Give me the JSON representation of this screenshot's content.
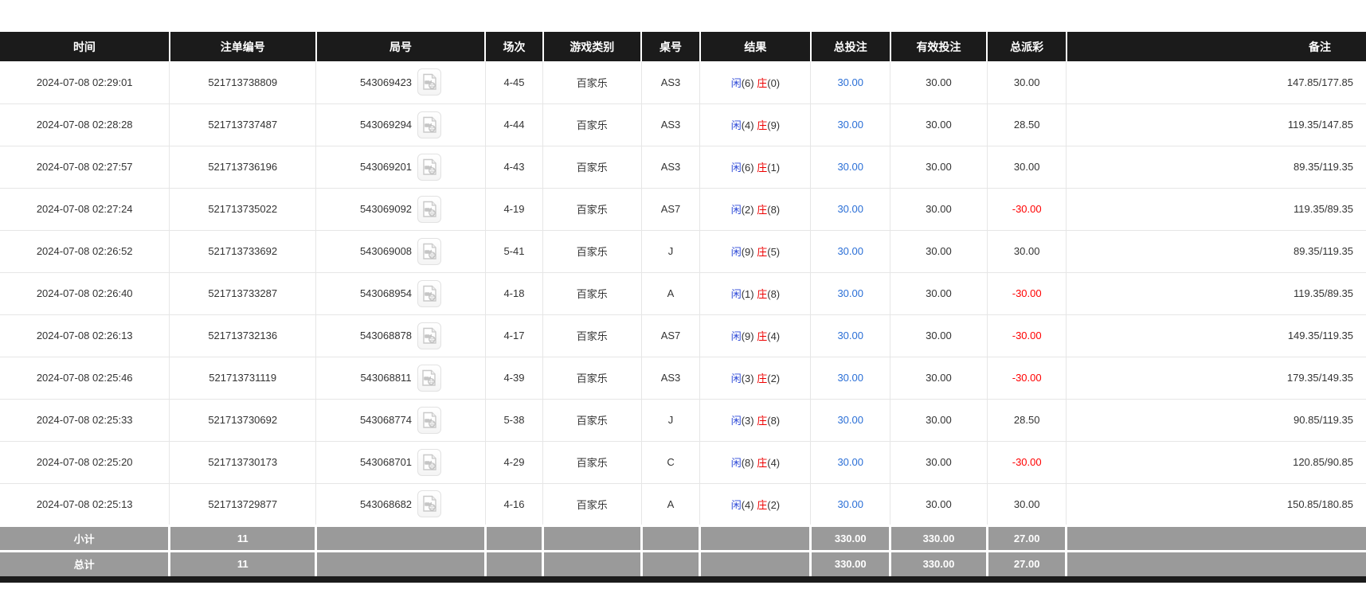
{
  "colors": {
    "header_bg": "#1b1b1b",
    "footer_bg": "#9a9a9a",
    "row_border": "#e6e6e6",
    "text": "#333333",
    "amount_blue": "#2b6fd6",
    "player_blue": "#2f4bd8",
    "banker_red": "#ee0000",
    "negative_red": "#ff0000"
  },
  "icons": {
    "round_video": "video-file-icon"
  },
  "table": {
    "columns": [
      {
        "key": "time",
        "label": "时间"
      },
      {
        "key": "bet_id",
        "label": "注单编号"
      },
      {
        "key": "round_id",
        "label": "局号"
      },
      {
        "key": "session",
        "label": "场次"
      },
      {
        "key": "game_type",
        "label": "游戏类别"
      },
      {
        "key": "table_no",
        "label": "桌号"
      },
      {
        "key": "result",
        "label": "结果"
      },
      {
        "key": "total_bet",
        "label": "总投注"
      },
      {
        "key": "valid_bet",
        "label": "有效投注"
      },
      {
        "key": "payout",
        "label": "总派彩"
      },
      {
        "key": "remark",
        "label": "备注"
      }
    ],
    "rows": [
      {
        "time": "2024-07-08 02:29:01",
        "bet_id": "521713738809",
        "round_id": "543069423",
        "session": "4-45",
        "game_type": "百家乐",
        "table_no": "AS3",
        "result_player": "闲",
        "result_player_score": "(6)",
        "result_banker": "庄",
        "result_banker_score": "(0)",
        "total_bet": "30.00",
        "valid_bet": "30.00",
        "payout": "30.00",
        "remark": "147.85/177.85"
      },
      {
        "time": "2024-07-08 02:28:28",
        "bet_id": "521713737487",
        "round_id": "543069294",
        "session": "4-44",
        "game_type": "百家乐",
        "table_no": "AS3",
        "result_player": "闲",
        "result_player_score": "(4)",
        "result_banker": "庄",
        "result_banker_score": "(9)",
        "total_bet": "30.00",
        "valid_bet": "30.00",
        "payout": "28.50",
        "remark": "119.35/147.85"
      },
      {
        "time": "2024-07-08 02:27:57",
        "bet_id": "521713736196",
        "round_id": "543069201",
        "session": "4-43",
        "game_type": "百家乐",
        "table_no": "AS3",
        "result_player": "闲",
        "result_player_score": "(6)",
        "result_banker": "庄",
        "result_banker_score": "(1)",
        "total_bet": "30.00",
        "valid_bet": "30.00",
        "payout": "30.00",
        "remark": "89.35/119.35"
      },
      {
        "time": "2024-07-08 02:27:24",
        "bet_id": "521713735022",
        "round_id": "543069092",
        "session": "4-19",
        "game_type": "百家乐",
        "table_no": "AS7",
        "result_player": "闲",
        "result_player_score": "(2)",
        "result_banker": "庄",
        "result_banker_score": "(8)",
        "total_bet": "30.00",
        "valid_bet": "30.00",
        "payout": "-30.00",
        "remark": "119.35/89.35"
      },
      {
        "time": "2024-07-08 02:26:52",
        "bet_id": "521713733692",
        "round_id": "543069008",
        "session": "5-41",
        "game_type": "百家乐",
        "table_no": "J",
        "result_player": "闲",
        "result_player_score": "(9)",
        "result_banker": "庄",
        "result_banker_score": "(5)",
        "total_bet": "30.00",
        "valid_bet": "30.00",
        "payout": "30.00",
        "remark": "89.35/119.35"
      },
      {
        "time": "2024-07-08 02:26:40",
        "bet_id": "521713733287",
        "round_id": "543068954",
        "session": "4-18",
        "game_type": "百家乐",
        "table_no": "A",
        "result_player": "闲",
        "result_player_score": "(1)",
        "result_banker": "庄",
        "result_banker_score": "(8)",
        "total_bet": "30.00",
        "valid_bet": "30.00",
        "payout": "-30.00",
        "remark": "119.35/89.35"
      },
      {
        "time": "2024-07-08 02:26:13",
        "bet_id": "521713732136",
        "round_id": "543068878",
        "session": "4-17",
        "game_type": "百家乐",
        "table_no": "AS7",
        "result_player": "闲",
        "result_player_score": "(9)",
        "result_banker": "庄",
        "result_banker_score": "(4)",
        "total_bet": "30.00",
        "valid_bet": "30.00",
        "payout": "-30.00",
        "remark": "149.35/119.35"
      },
      {
        "time": "2024-07-08 02:25:46",
        "bet_id": "521713731119",
        "round_id": "543068811",
        "session": "4-39",
        "game_type": "百家乐",
        "table_no": "AS3",
        "result_player": "闲",
        "result_player_score": "(3)",
        "result_banker": "庄",
        "result_banker_score": "(2)",
        "total_bet": "30.00",
        "valid_bet": "30.00",
        "payout": "-30.00",
        "remark": "179.35/149.35"
      },
      {
        "time": "2024-07-08 02:25:33",
        "bet_id": "521713730692",
        "round_id": "543068774",
        "session": "5-38",
        "game_type": "百家乐",
        "table_no": "J",
        "result_player": "闲",
        "result_player_score": "(3)",
        "result_banker": "庄",
        "result_banker_score": "(8)",
        "total_bet": "30.00",
        "valid_bet": "30.00",
        "payout": "28.50",
        "remark": "90.85/119.35"
      },
      {
        "time": "2024-07-08 02:25:20",
        "bet_id": "521713730173",
        "round_id": "543068701",
        "session": "4-29",
        "game_type": "百家乐",
        "table_no": "C",
        "result_player": "闲",
        "result_player_score": "(8)",
        "result_banker": "庄",
        "result_banker_score": "(4)",
        "total_bet": "30.00",
        "valid_bet": "30.00",
        "payout": "-30.00",
        "remark": "120.85/90.85"
      },
      {
        "time": "2024-07-08 02:25:13",
        "bet_id": "521713729877",
        "round_id": "543068682",
        "session": "4-16",
        "game_type": "百家乐",
        "table_no": "A",
        "result_player": "闲",
        "result_player_score": "(4)",
        "result_banker": "庄",
        "result_banker_score": "(2)",
        "total_bet": "30.00",
        "valid_bet": "30.00",
        "payout": "30.00",
        "remark": "150.85/180.85"
      }
    ],
    "summary_rows": [
      {
        "name": "subtotal-row",
        "label": "小计",
        "count": "11",
        "total_bet": "330.00",
        "valid_bet": "330.00",
        "payout": "27.00"
      },
      {
        "name": "total-row",
        "label": "总计",
        "count": "11",
        "total_bet": "330.00",
        "valid_bet": "330.00",
        "payout": "27.00"
      }
    ]
  }
}
